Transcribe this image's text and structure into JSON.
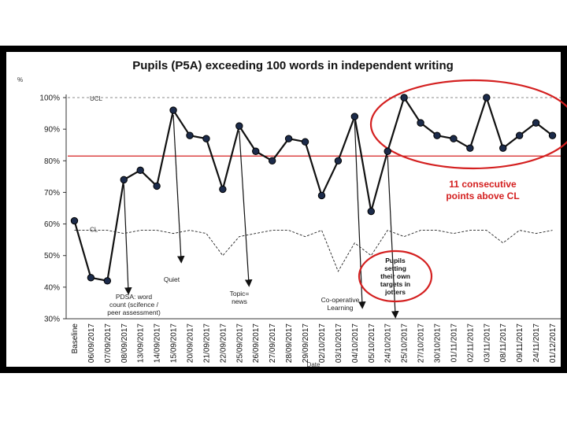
{
  "chart_data": {
    "type": "line",
    "title": "Pupils (P5A) exceeding 100 words in independent writing",
    "y_unit": "%",
    "xlabel": "Date",
    "ylim": [
      30,
      100
    ],
    "yticks": [
      "30%",
      "40%",
      "50%",
      "60%",
      "70%",
      "80%",
      "90%",
      "100%"
    ],
    "ytick_values": [
      30,
      40,
      50,
      60,
      70,
      80,
      90,
      100
    ],
    "categories": [
      "Baseline",
      "06/09/2017",
      "07/09/2017",
      "08/09/2017",
      "13/09/2017",
      "14/09/2017",
      "15/09/2017",
      "20/09/2017",
      "21/09/2017",
      "22/09/2017",
      "25/09/2017",
      "26/09/2017",
      "27/09/2017",
      "28/09/2017",
      "29/09/2017",
      "02/10/2017",
      "03/10/2017",
      "04/10/2017",
      "05/10/2017",
      "24/10/2017",
      "25/10/2017",
      "27/10/2017",
      "30/10/2017",
      "01/11/2017",
      "02/11/2017",
      "03/11/2017",
      "08/11/2017",
      "09/11/2017",
      "24/11/2017",
      "01/12/2017"
    ],
    "series": [
      {
        "values": [
          61,
          43,
          42,
          74,
          77,
          72,
          96,
          88,
          87,
          71,
          91,
          83,
          80,
          87,
          86,
          69,
          80,
          94,
          64,
          83,
          100,
          92,
          88,
          87,
          84,
          100,
          84,
          88,
          92,
          88
        ]
      },
      {
        "values": [
          58,
          58,
          58,
          57,
          58,
          58,
          57,
          58,
          57,
          50,
          56,
          57,
          58,
          58,
          56,
          58,
          45,
          54,
          50,
          58,
          56,
          58,
          58,
          57,
          58,
          58,
          54,
          58,
          57,
          58
        ]
      }
    ],
    "limit_labels": {
      "ucl": "UCL",
      "cl": "CL"
    },
    "center_line": 81.5,
    "ucl": 100,
    "colors": {
      "data": "#111111",
      "marker": "#1c2b4a",
      "center_line": "#d42020",
      "callout": "#d42020",
      "frame": "#000000"
    },
    "annotations": [
      {
        "lines": [
          "PDSA: word",
          "count (scifence /",
          "peer assessment)"
        ],
        "point_index": 3
      },
      {
        "lines": [
          "Quiet"
        ],
        "point_index": 6
      },
      {
        "lines": [
          "Topic=",
          "news"
        ],
        "point_index": 10
      },
      {
        "lines": [
          "Co-operative",
          "Learning"
        ],
        "point_index": 17
      },
      {
        "lines": [
          "Pupils",
          "setting",
          "their own",
          "targets in",
          "jotters"
        ],
        "point_index": 19,
        "boxed": true
      }
    ],
    "highlight": {
      "lines": [
        "11 consecutive",
        "points above CL"
      ]
    }
  }
}
